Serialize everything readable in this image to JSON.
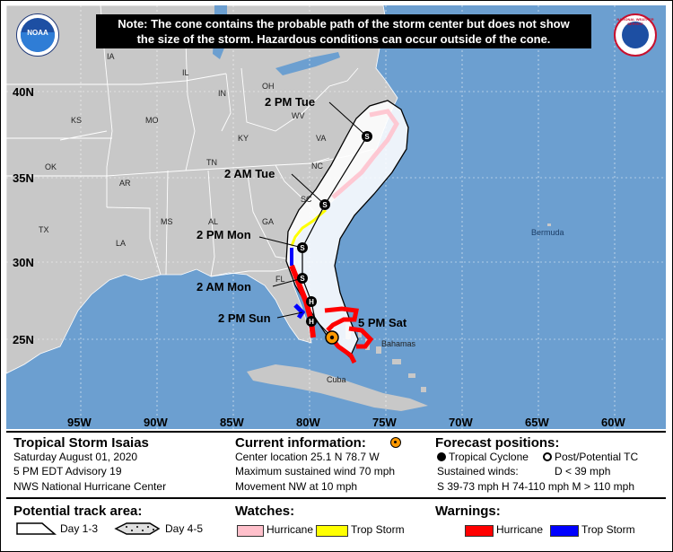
{
  "note": {
    "line1": "Note: The cone contains the probable path of the storm center but does not show",
    "line2": "the size of the storm. Hazardous conditions can occur outside of the cone."
  },
  "map": {
    "lat_labels": [
      "40N",
      "35N",
      "30N",
      "25N"
    ],
    "lon_labels": [
      "95W",
      "90W",
      "85W",
      "80W",
      "75W",
      "70W",
      "65W",
      "60W"
    ],
    "states": [
      "IA",
      "IL",
      "IN",
      "OH",
      "MO",
      "KS",
      "KY",
      "WV",
      "VA",
      "TN",
      "NC",
      "OK",
      "AR",
      "SC",
      "MS",
      "AL",
      "GA",
      "TX",
      "LA",
      "FL"
    ],
    "places": {
      "bermuda": "Bermuda",
      "bahamas": "Bahamas",
      "cuba": "Cuba"
    },
    "forecast_labels": [
      "2 PM Tue",
      "2 AM Tue",
      "2 PM Mon",
      "2 AM Mon",
      "2 PM Sun",
      "5 PM Sat"
    ],
    "point_letters": {
      "storm": "S",
      "hurricane": "H"
    },
    "logos": {
      "noaa": "NOAA",
      "nws": "NATIONAL WEATHER SERVICE"
    },
    "colors": {
      "water": "#6c9fd0",
      "land": "#c8c8c8",
      "cone": "#ffffff",
      "hurricane_warning": "#ff0000",
      "storm_warning": "#0000ff",
      "storm_watch": "#ffff00",
      "hurricane_watch": "#ffc0cb"
    }
  },
  "legend": {
    "storm_name": "Tropical Storm Isaias",
    "date": "Saturday August 01, 2020",
    "advisory": "5 PM EDT Advisory 19",
    "center": "NWS National Hurricane Center",
    "current_title": "Current information:",
    "location": "Center location 25.1 N 78.7 W",
    "max_wind": "Maximum sustained wind 70 mph",
    "movement": "Movement NW at 10 mph",
    "forecast_title": "Forecast positions:",
    "tropical_cyclone": "Tropical Cyclone",
    "post_tc": "Post/Potential TC",
    "sustained_winds": "Sustained winds:",
    "d_range": "D < 39 mph",
    "winds_detail": "S 39-73 mph  H 74-110 mph  M > 110 mph",
    "track_title": "Potential track area:",
    "day13": "Day 1-3",
    "day45": "Day 4-5",
    "watches_title": "Watches:",
    "watch_hurricane": "Hurricane",
    "watch_storm": "Trop Storm",
    "warnings_title": "Warnings:",
    "warn_hurricane": "Hurricane",
    "warn_storm": "Trop Storm"
  }
}
